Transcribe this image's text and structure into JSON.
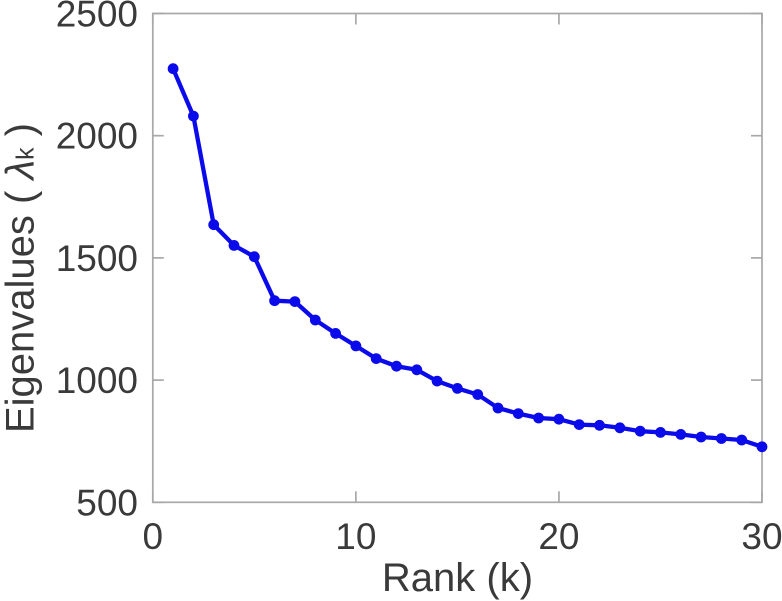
{
  "chart_data": {
    "type": "line",
    "title": "",
    "xlabel": "Rank (k)",
    "ylabel": "Eigenvalues ( λk )",
    "ylabel_parts": {
      "prefix": "Eigenvalues ( ",
      "symbol": "λ",
      "subscript": "k",
      "suffix": " )"
    },
    "x": [
      1,
      2,
      3,
      4,
      5,
      6,
      7,
      8,
      9,
      10,
      11,
      12,
      13,
      14,
      15,
      16,
      17,
      18,
      19,
      20,
      21,
      22,
      23,
      24,
      25,
      26,
      27,
      28,
      29,
      30
    ],
    "y": [
      2274,
      2080,
      1636,
      1551,
      1505,
      1325,
      1321,
      1246,
      1191,
      1140,
      1088,
      1057,
      1042,
      996,
      966,
      941,
      886,
      863,
      845,
      840,
      818,
      815,
      805,
      791,
      786,
      778,
      767,
      761,
      755,
      727
    ],
    "xlim": [
      0,
      30
    ],
    "ylim": [
      500,
      2500
    ],
    "xticks": [
      0,
      10,
      20,
      30
    ],
    "yticks": [
      500,
      1000,
      1500,
      2000,
      2500
    ],
    "grid": false,
    "legend": false,
    "marker": "filled-circle",
    "colors": {
      "line": "#0a0aeb",
      "axis": "#a8a8a8",
      "text": "#3a3a3a"
    }
  }
}
